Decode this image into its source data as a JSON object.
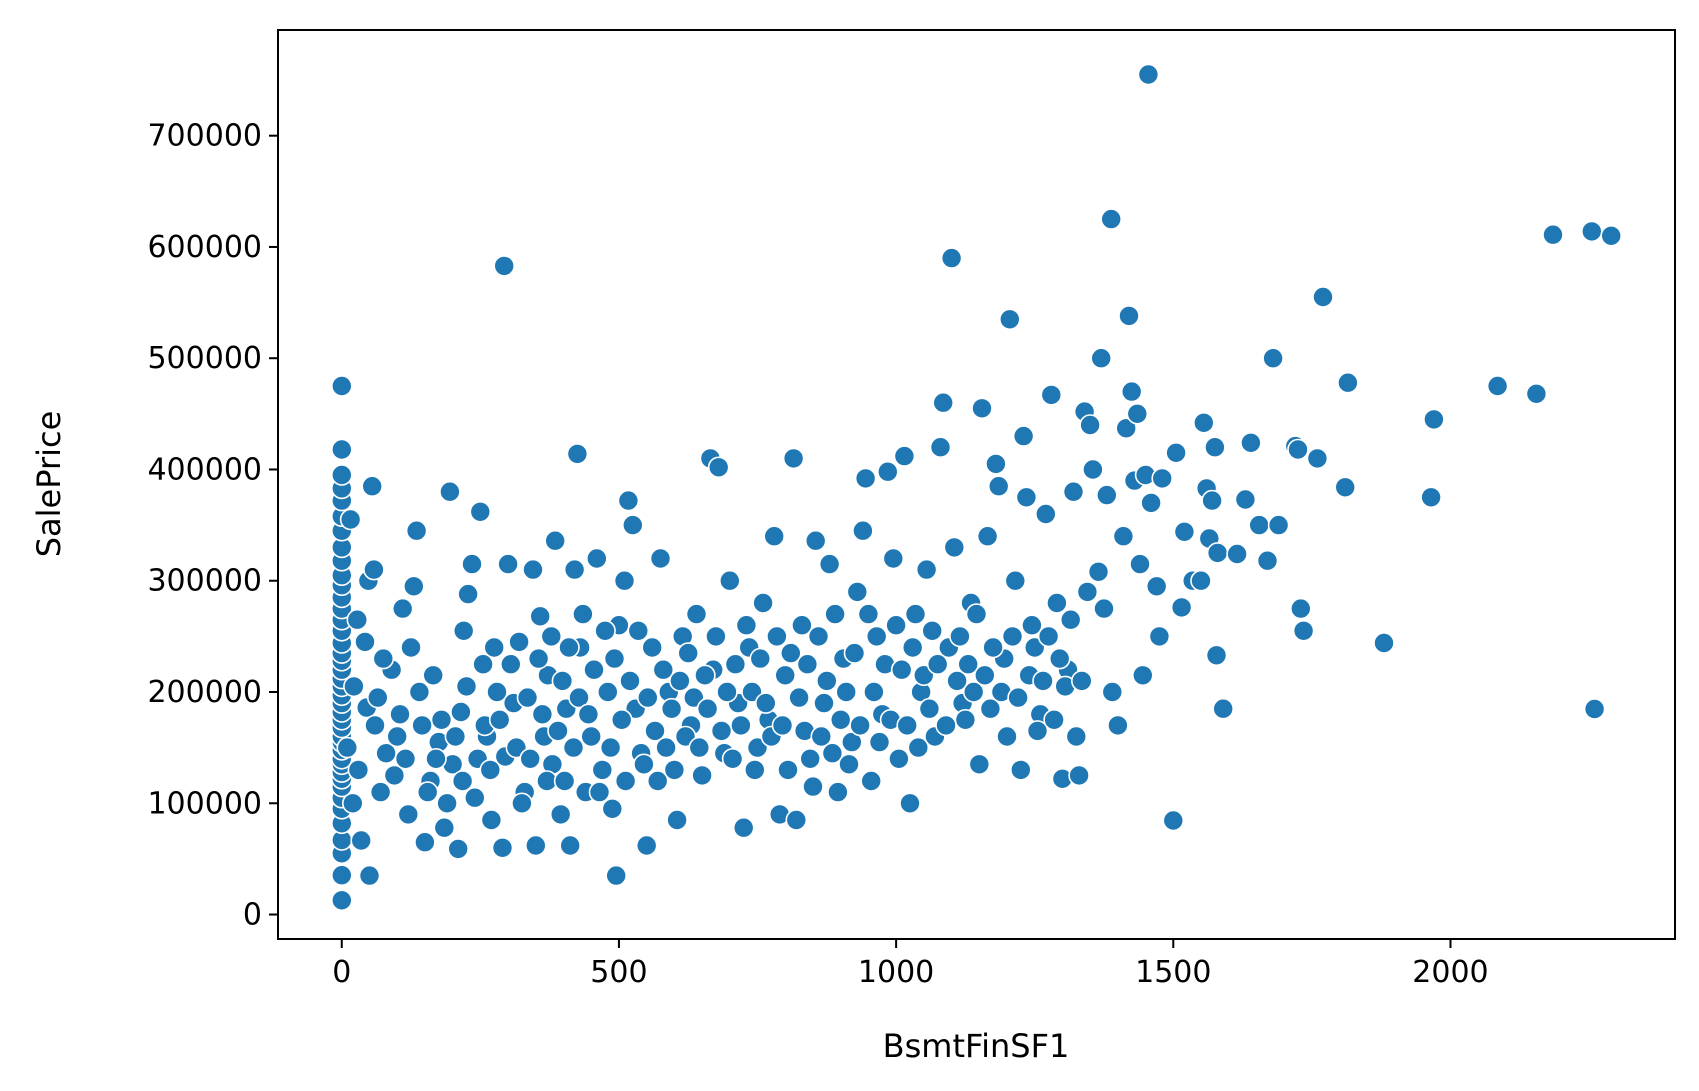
{
  "chart_data": {
    "type": "scatter",
    "title": "",
    "xlabel": "BsmtFinSF1",
    "ylabel": "SalePrice",
    "xlim": [
      -115,
      2405
    ],
    "ylim": [
      -22000,
      795000
    ],
    "xticks": [
      0,
      500,
      1000,
      1500,
      2000
    ],
    "yticks": [
      0,
      100000,
      200000,
      300000,
      400000,
      500000,
      600000,
      700000
    ],
    "xtick_labels": [
      "0",
      "500",
      "1000",
      "1500",
      "2000"
    ],
    "ytick_labels": [
      "0",
      "100000",
      "200000",
      "300000",
      "400000",
      "500000",
      "600000",
      "700000"
    ],
    "grid": false,
    "legend": "none",
    "point_color": "#1f77b4",
    "points": [
      [
        0,
        12789
      ],
      [
        0,
        35311
      ],
      [
        0,
        55000
      ],
      [
        0,
        67000
      ],
      [
        0,
        82000
      ],
      [
        0,
        95000
      ],
      [
        0,
        105000
      ],
      [
        0,
        115000
      ],
      [
        0,
        122000
      ],
      [
        0,
        128000
      ],
      [
        0,
        135000
      ],
      [
        0,
        140000
      ],
      [
        0,
        148000
      ],
      [
        0,
        155000
      ],
      [
        0,
        160000
      ],
      [
        0,
        168000
      ],
      [
        0,
        175000
      ],
      [
        0,
        182000
      ],
      [
        0,
        190000
      ],
      [
        0,
        197000
      ],
      [
        0,
        205000
      ],
      [
        0,
        212000
      ],
      [
        0,
        220000
      ],
      [
        0,
        228000
      ],
      [
        0,
        235000
      ],
      [
        0,
        244000
      ],
      [
        0,
        255000
      ],
      [
        0,
        265000
      ],
      [
        0,
        275000
      ],
      [
        0,
        285000
      ],
      [
        0,
        296000
      ],
      [
        0,
        305000
      ],
      [
        0,
        318000
      ],
      [
        0,
        330000
      ],
      [
        0,
        345000
      ],
      [
        0,
        358000
      ],
      [
        0,
        372000
      ],
      [
        0,
        383000
      ],
      [
        0,
        395000
      ],
      [
        0,
        418000
      ],
      [
        0,
        475000
      ],
      [
        16,
        355000
      ],
      [
        20,
        100000
      ],
      [
        28,
        265000
      ],
      [
        35,
        66500
      ],
      [
        45,
        186000
      ],
      [
        48,
        300000
      ],
      [
        50,
        35000
      ],
      [
        55,
        385000
      ],
      [
        58,
        310000
      ],
      [
        65,
        195000
      ],
      [
        70,
        110000
      ],
      [
        80,
        145000
      ],
      [
        90,
        220000
      ],
      [
        100,
        160000
      ],
      [
        110,
        275000
      ],
      [
        120,
        90000
      ],
      [
        125,
        240000
      ],
      [
        130,
        295000
      ],
      [
        135,
        345000
      ],
      [
        150,
        65000
      ],
      [
        160,
        120000
      ],
      [
        175,
        155000
      ],
      [
        185,
        78000
      ],
      [
        195,
        380000
      ],
      [
        200,
        135000
      ],
      [
        210,
        59000
      ],
      [
        215,
        182000
      ],
      [
        220,
        255000
      ],
      [
        228,
        288000
      ],
      [
        235,
        315000
      ],
      [
        240,
        105000
      ],
      [
        250,
        362000
      ],
      [
        255,
        225000
      ],
      [
        262,
        160000
      ],
      [
        270,
        85000
      ],
      [
        280,
        200000
      ],
      [
        290,
        60000
      ],
      [
        293,
        583000
      ],
      [
        295,
        142000
      ],
      [
        300,
        315000
      ],
      [
        310,
        190000
      ],
      [
        320,
        245000
      ],
      [
        330,
        110000
      ],
      [
        345,
        310000
      ],
      [
        350,
        62000
      ],
      [
        358,
        268000
      ],
      [
        365,
        160000
      ],
      [
        372,
        215000
      ],
      [
        380,
        135000
      ],
      [
        385,
        336000
      ],
      [
        395,
        90000
      ],
      [
        405,
        185000
      ],
      [
        412,
        62000
      ],
      [
        420,
        310000
      ],
      [
        425,
        414000
      ],
      [
        430,
        240000
      ],
      [
        440,
        110000
      ],
      [
        450,
        160000
      ],
      [
        460,
        320000
      ],
      [
        470,
        130000
      ],
      [
        480,
        200000
      ],
      [
        488,
        95000
      ],
      [
        495,
        35000
      ],
      [
        500,
        260000
      ],
      [
        510,
        300000
      ],
      [
        517,
        372000
      ],
      [
        525,
        350000
      ],
      [
        530,
        185000
      ],
      [
        540,
        145000
      ],
      [
        550,
        62000
      ],
      [
        560,
        240000
      ],
      [
        570,
        120000
      ],
      [
        575,
        320000
      ],
      [
        590,
        200000
      ],
      [
        605,
        85000
      ],
      [
        615,
        250000
      ],
      [
        630,
        170000
      ],
      [
        640,
        270000
      ],
      [
        650,
        125000
      ],
      [
        665,
        410000
      ],
      [
        670,
        220000
      ],
      [
        680,
        402000
      ],
      [
        690,
        145000
      ],
      [
        700,
        300000
      ],
      [
        715,
        190000
      ],
      [
        725,
        78000
      ],
      [
        735,
        240000
      ],
      [
        745,
        130000
      ],
      [
        760,
        280000
      ],
      [
        770,
        175000
      ],
      [
        780,
        340000
      ],
      [
        790,
        90000
      ],
      [
        800,
        215000
      ],
      [
        815,
        410000
      ],
      [
        820,
        85000
      ],
      [
        830,
        260000
      ],
      [
        845,
        140000
      ],
      [
        855,
        336000
      ],
      [
        870,
        190000
      ],
      [
        880,
        315000
      ],
      [
        895,
        110000
      ],
      [
        905,
        230000
      ],
      [
        920,
        155000
      ],
      [
        930,
        290000
      ],
      [
        940,
        345000
      ],
      [
        945,
        392000
      ],
      [
        955,
        120000
      ],
      [
        965,
        250000
      ],
      [
        975,
        180000
      ],
      [
        985,
        398000
      ],
      [
        995,
        320000
      ],
      [
        1005,
        140000
      ],
      [
        1015,
        412000
      ],
      [
        1025,
        100000
      ],
      [
        1035,
        270000
      ],
      [
        1045,
        200000
      ],
      [
        1055,
        310000
      ],
      [
        1070,
        160000
      ],
      [
        1080,
        420000
      ],
      [
        1085,
        460000
      ],
      [
        1095,
        240000
      ],
      [
        1100,
        590000
      ],
      [
        1105,
        330000
      ],
      [
        1120,
        190000
      ],
      [
        1135,
        280000
      ],
      [
        1150,
        135000
      ],
      [
        1155,
        455000
      ],
      [
        1165,
        340000
      ],
      [
        1180,
        405000
      ],
      [
        1185,
        385000
      ],
      [
        1195,
        230000
      ],
      [
        1205,
        535000
      ],
      [
        1215,
        300000
      ],
      [
        1225,
        130000
      ],
      [
        1230,
        430000
      ],
      [
        1235,
        375000
      ],
      [
        1245,
        260000
      ],
      [
        1260,
        180000
      ],
      [
        1270,
        360000
      ],
      [
        1280,
        467000
      ],
      [
        1290,
        280000
      ],
      [
        1300,
        122000
      ],
      [
        1310,
        220000
      ],
      [
        1320,
        380000
      ],
      [
        1330,
        125000
      ],
      [
        1340,
        452000
      ],
      [
        1350,
        440000
      ],
      [
        1355,
        400000
      ],
      [
        1365,
        308000
      ],
      [
        1370,
        500000
      ],
      [
        1375,
        275000
      ],
      [
        1380,
        377000
      ],
      [
        1388,
        625000
      ],
      [
        1390,
        200000
      ],
      [
        1400,
        170000
      ],
      [
        1410,
        340000
      ],
      [
        1415,
        437000
      ],
      [
        1420,
        538000
      ],
      [
        1425,
        470000
      ],
      [
        1430,
        390000
      ],
      [
        1435,
        450000
      ],
      [
        1440,
        315000
      ],
      [
        1445,
        215000
      ],
      [
        1450,
        395000
      ],
      [
        1455,
        755000
      ],
      [
        1460,
        370000
      ],
      [
        1470,
        295000
      ],
      [
        1475,
        250000
      ],
      [
        1480,
        392000
      ],
      [
        1500,
        84500
      ],
      [
        1505,
        415000
      ],
      [
        1515,
        276000
      ],
      [
        1520,
        344000
      ],
      [
        1535,
        300000
      ],
      [
        1550,
        300000
      ],
      [
        1555,
        442000
      ],
      [
        1560,
        383000
      ],
      [
        1565,
        338000
      ],
      [
        1570,
        372000
      ],
      [
        1575,
        420000
      ],
      [
        1578,
        233000
      ],
      [
        1580,
        325000
      ],
      [
        1590,
        185000
      ],
      [
        1615,
        324000
      ],
      [
        1630,
        373000
      ],
      [
        1640,
        424000
      ],
      [
        1655,
        350000
      ],
      [
        1670,
        318000
      ],
      [
        1680,
        500000
      ],
      [
        1690,
        350000
      ],
      [
        1720,
        421000
      ],
      [
        1725,
        418000
      ],
      [
        1730,
        275000
      ],
      [
        1735,
        255000
      ],
      [
        1760,
        410000
      ],
      [
        1770,
        555000
      ],
      [
        1810,
        384000
      ],
      [
        1815,
        478000
      ],
      [
        1880,
        244000
      ],
      [
        1965,
        375000
      ],
      [
        1970,
        445000
      ],
      [
        2085,
        475000
      ],
      [
        2155,
        468000
      ],
      [
        2185,
        611000
      ],
      [
        2255,
        614000
      ],
      [
        2260,
        184750
      ],
      [
        2290,
        610000
      ],
      [
        10,
        150000
      ],
      [
        22,
        205000
      ],
      [
        30,
        130000
      ],
      [
        42,
        245000
      ],
      [
        60,
        170000
      ],
      [
        75,
        230000
      ],
      [
        95,
        125000
      ],
      [
        105,
        180000
      ],
      [
        115,
        140000
      ],
      [
        140,
        200000
      ],
      [
        145,
        170000
      ],
      [
        155,
        110000
      ],
      [
        165,
        215000
      ],
      [
        170,
        140000
      ],
      [
        180,
        175000
      ],
      [
        190,
        100000
      ],
      [
        205,
        160000
      ],
      [
        218,
        120000
      ],
      [
        225,
        205000
      ],
      [
        245,
        140000
      ],
      [
        258,
        170000
      ],
      [
        268,
        130000
      ],
      [
        275,
        240000
      ],
      [
        285,
        175000
      ],
      [
        305,
        225000
      ],
      [
        315,
        150000
      ],
      [
        325,
        100000
      ],
      [
        335,
        195000
      ],
      [
        340,
        140000
      ],
      [
        355,
        230000
      ],
      [
        362,
        180000
      ],
      [
        370,
        120000
      ],
      [
        378,
        250000
      ],
      [
        390,
        165000
      ],
      [
        398,
        210000
      ],
      [
        402,
        120000
      ],
      [
        410,
        240000
      ],
      [
        418,
        150000
      ],
      [
        428,
        195000
      ],
      [
        435,
        270000
      ],
      [
        445,
        180000
      ],
      [
        455,
        220000
      ],
      [
        465,
        110000
      ],
      [
        475,
        255000
      ],
      [
        485,
        150000
      ],
      [
        492,
        230000
      ],
      [
        505,
        175000
      ],
      [
        512,
        120000
      ],
      [
        520,
        210000
      ],
      [
        535,
        255000
      ],
      [
        545,
        135000
      ],
      [
        552,
        195000
      ],
      [
        565,
        165000
      ],
      [
        580,
        220000
      ],
      [
        585,
        150000
      ],
      [
        595,
        185000
      ],
      [
        600,
        130000
      ],
      [
        610,
        210000
      ],
      [
        620,
        160000
      ],
      [
        625,
        235000
      ],
      [
        635,
        195000
      ],
      [
        645,
        150000
      ],
      [
        655,
        215000
      ],
      [
        660,
        185000
      ],
      [
        675,
        250000
      ],
      [
        685,
        165000
      ],
      [
        695,
        200000
      ],
      [
        705,
        140000
      ],
      [
        710,
        225000
      ],
      [
        720,
        170000
      ],
      [
        730,
        260000
      ],
      [
        740,
        200000
      ],
      [
        750,
        150000
      ],
      [
        755,
        230000
      ],
      [
        765,
        190000
      ],
      [
        775,
        160000
      ],
      [
        785,
        250000
      ],
      [
        795,
        170000
      ],
      [
        805,
        130000
      ],
      [
        810,
        235000
      ],
      [
        825,
        195000
      ],
      [
        835,
        165000
      ],
      [
        840,
        225000
      ],
      [
        850,
        115000
      ],
      [
        860,
        250000
      ],
      [
        865,
        160000
      ],
      [
        875,
        210000
      ],
      [
        885,
        145000
      ],
      [
        890,
        270000
      ],
      [
        900,
        175000
      ],
      [
        910,
        200000
      ],
      [
        915,
        135000
      ],
      [
        925,
        235000
      ],
      [
        935,
        170000
      ],
      [
        950,
        270000
      ],
      [
        960,
        200000
      ],
      [
        970,
        155000
      ],
      [
        980,
        225000
      ],
      [
        990,
        175000
      ],
      [
        1000,
        260000
      ],
      [
        1010,
        220000
      ],
      [
        1020,
        170000
      ],
      [
        1030,
        240000
      ],
      [
        1040,
        150000
      ],
      [
        1050,
        215000
      ],
      [
        1060,
        185000
      ],
      [
        1065,
        255000
      ],
      [
        1075,
        225000
      ],
      [
        1090,
        170000
      ],
      [
        1110,
        210000
      ],
      [
        1115,
        250000
      ],
      [
        1125,
        175000
      ],
      [
        1130,
        225000
      ],
      [
        1140,
        200000
      ],
      [
        1145,
        270000
      ],
      [
        1160,
        215000
      ],
      [
        1170,
        185000
      ],
      [
        1175,
        240000
      ],
      [
        1190,
        200000
      ],
      [
        1200,
        160000
      ],
      [
        1210,
        250000
      ],
      [
        1220,
        195000
      ],
      [
        1240,
        215000
      ],
      [
        1250,
        240000
      ],
      [
        1255,
        165000
      ],
      [
        1265,
        210000
      ],
      [
        1275,
        250000
      ],
      [
        1285,
        175000
      ],
      [
        1295,
        230000
      ],
      [
        1305,
        205000
      ],
      [
        1315,
        265000
      ],
      [
        1325,
        160000
      ],
      [
        1335,
        210000
      ],
      [
        1345,
        290000
      ]
    ]
  }
}
